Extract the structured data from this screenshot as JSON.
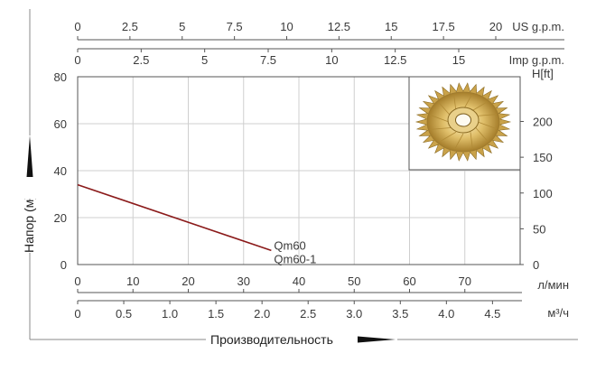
{
  "chart_data": {
    "type": "line",
    "title": "",
    "ylabel": "Напор (м)",
    "xlabel": "Производительность",
    "ylim": [
      0,
      80
    ],
    "grid": true,
    "x_axes": {
      "lmin": {
        "unit": "л/мин",
        "range": [
          0,
          80
        ],
        "ticks": [
          0,
          10,
          20,
          30,
          40,
          50,
          60,
          70
        ]
      },
      "m3h": {
        "unit": "м³/ч",
        "range": [
          0,
          4.8
        ],
        "ticks": [
          "0",
          "0.5",
          "1.0",
          "1.5",
          "2.0",
          "2.5",
          "3.0",
          "3.5",
          "4.0",
          "4.5"
        ]
      },
      "usgpm": {
        "unit": "US g.p.m.",
        "ticks": [
          "0",
          "2.5",
          "5",
          "7.5",
          "10",
          "12.5",
          "15",
          "17.5",
          "20"
        ]
      },
      "impgpm": {
        "unit": "Imp g.p.m.",
        "ticks": [
          "0",
          "2.5",
          "5",
          "7.5",
          "10",
          "12.5",
          "15"
        ]
      }
    },
    "y_axes": {
      "m": {
        "ticks": [
          0,
          20,
          40,
          60,
          80
        ]
      },
      "ft": {
        "unit": "H[ft]",
        "ticks": [
          0,
          50,
          100,
          150,
          200
        ]
      }
    },
    "series": [
      {
        "name": "Qm60",
        "name2": "Qm60-1",
        "color": "#8b1a1a",
        "x": [
          0,
          35
        ],
        "y": [
          34,
          6
        ]
      }
    ],
    "inset_image": "impeller-icon"
  }
}
